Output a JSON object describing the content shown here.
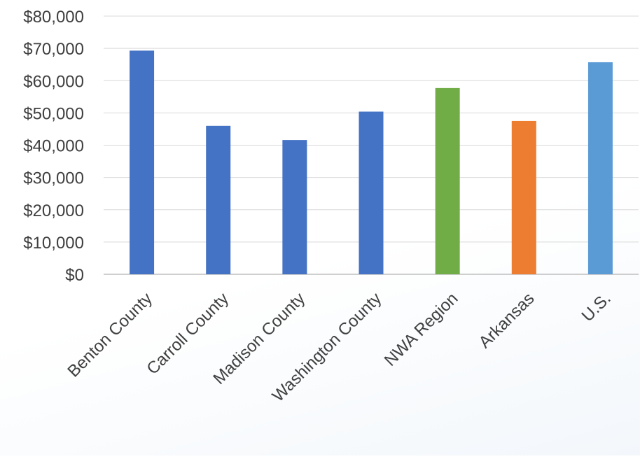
{
  "chart_data": {
    "type": "bar",
    "title": "",
    "xlabel": "",
    "ylabel": "",
    "categories": [
      "Benton County",
      "Carroll County",
      "Madison County",
      "Washington County",
      "NWA Region",
      "Arkansas",
      "U.S."
    ],
    "values": [
      69300,
      46000,
      41600,
      50400,
      57700,
      47500,
      65700
    ],
    "bar_colors": [
      "#4472C4",
      "#4472C4",
      "#4472C4",
      "#4472C4",
      "#70AD47",
      "#ED7D31",
      "#5B9BD5"
    ],
    "ylim": [
      0,
      80000
    ],
    "y_ticks": [
      {
        "value": 0,
        "label": "$0"
      },
      {
        "value": 10000,
        "label": "$10,000"
      },
      {
        "value": 20000,
        "label": "$20,000"
      },
      {
        "value": 30000,
        "label": "$30,000"
      },
      {
        "value": 40000,
        "label": "$40,000"
      },
      {
        "value": 50000,
        "label": "$50,000"
      },
      {
        "value": 60000,
        "label": "$60,000"
      },
      {
        "value": 70000,
        "label": "$70,000"
      },
      {
        "value": 80000,
        "label": "$80,000"
      }
    ],
    "grid": true,
    "legend": "none"
  }
}
